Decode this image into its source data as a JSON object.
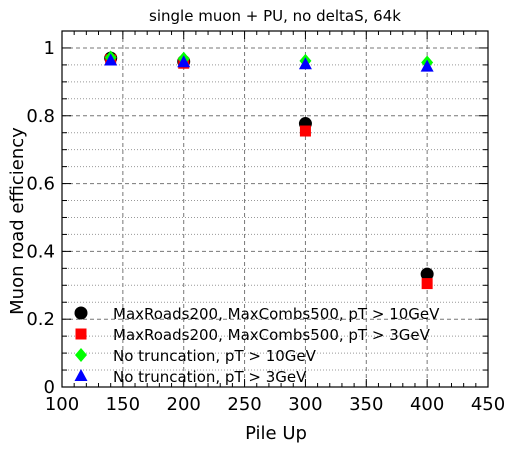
{
  "chart_data": {
    "type": "scatter",
    "title": "single muon + PU, no deltaS, 64k",
    "xlabel": "Pile Up",
    "ylabel": "Muon road efficiency",
    "xlim": [
      100,
      450
    ],
    "ylim": [
      0,
      1.05
    ],
    "xticks": [
      100,
      150,
      200,
      250,
      300,
      350,
      400,
      450
    ],
    "yticks": [
      0,
      0.2,
      0.4,
      0.6,
      0.8,
      1
    ],
    "xtick_labels": [
      "100",
      "150",
      "200",
      "250",
      "300",
      "350",
      "400",
      "450"
    ],
    "ytick_labels": [
      "0",
      "0.2",
      "0.4",
      "0.6",
      "0.8",
      "1"
    ],
    "grid": true,
    "legend_position": "lower-left",
    "series": [
      {
        "name": "MaxRoads200, MaxCombs500, pT > 10GeV",
        "marker": "circle",
        "color": "#000000",
        "x": [
          140,
          200,
          300,
          400
        ],
        "y": [
          0.97,
          0.96,
          0.777,
          0.333
        ]
      },
      {
        "name": "MaxRoads200, MaxCombs500, pT > 3GeV",
        "marker": "square",
        "color": "#ff0000",
        "x": [
          140,
          200,
          300,
          400
        ],
        "y": [
          0.965,
          0.955,
          0.755,
          0.305
        ]
      },
      {
        "name": "No truncation, pT > 10GeV",
        "marker": "diamond",
        "color": "#00ff00",
        "x": [
          140,
          200,
          300,
          400
        ],
        "y": [
          0.972,
          0.968,
          0.962,
          0.957
        ]
      },
      {
        "name": "No truncation, pT > 3GeV",
        "marker": "triangle",
        "color": "#0000ff",
        "x": [
          140,
          200,
          300,
          400
        ],
        "y": [
          0.963,
          0.958,
          0.952,
          0.945
        ]
      }
    ]
  }
}
